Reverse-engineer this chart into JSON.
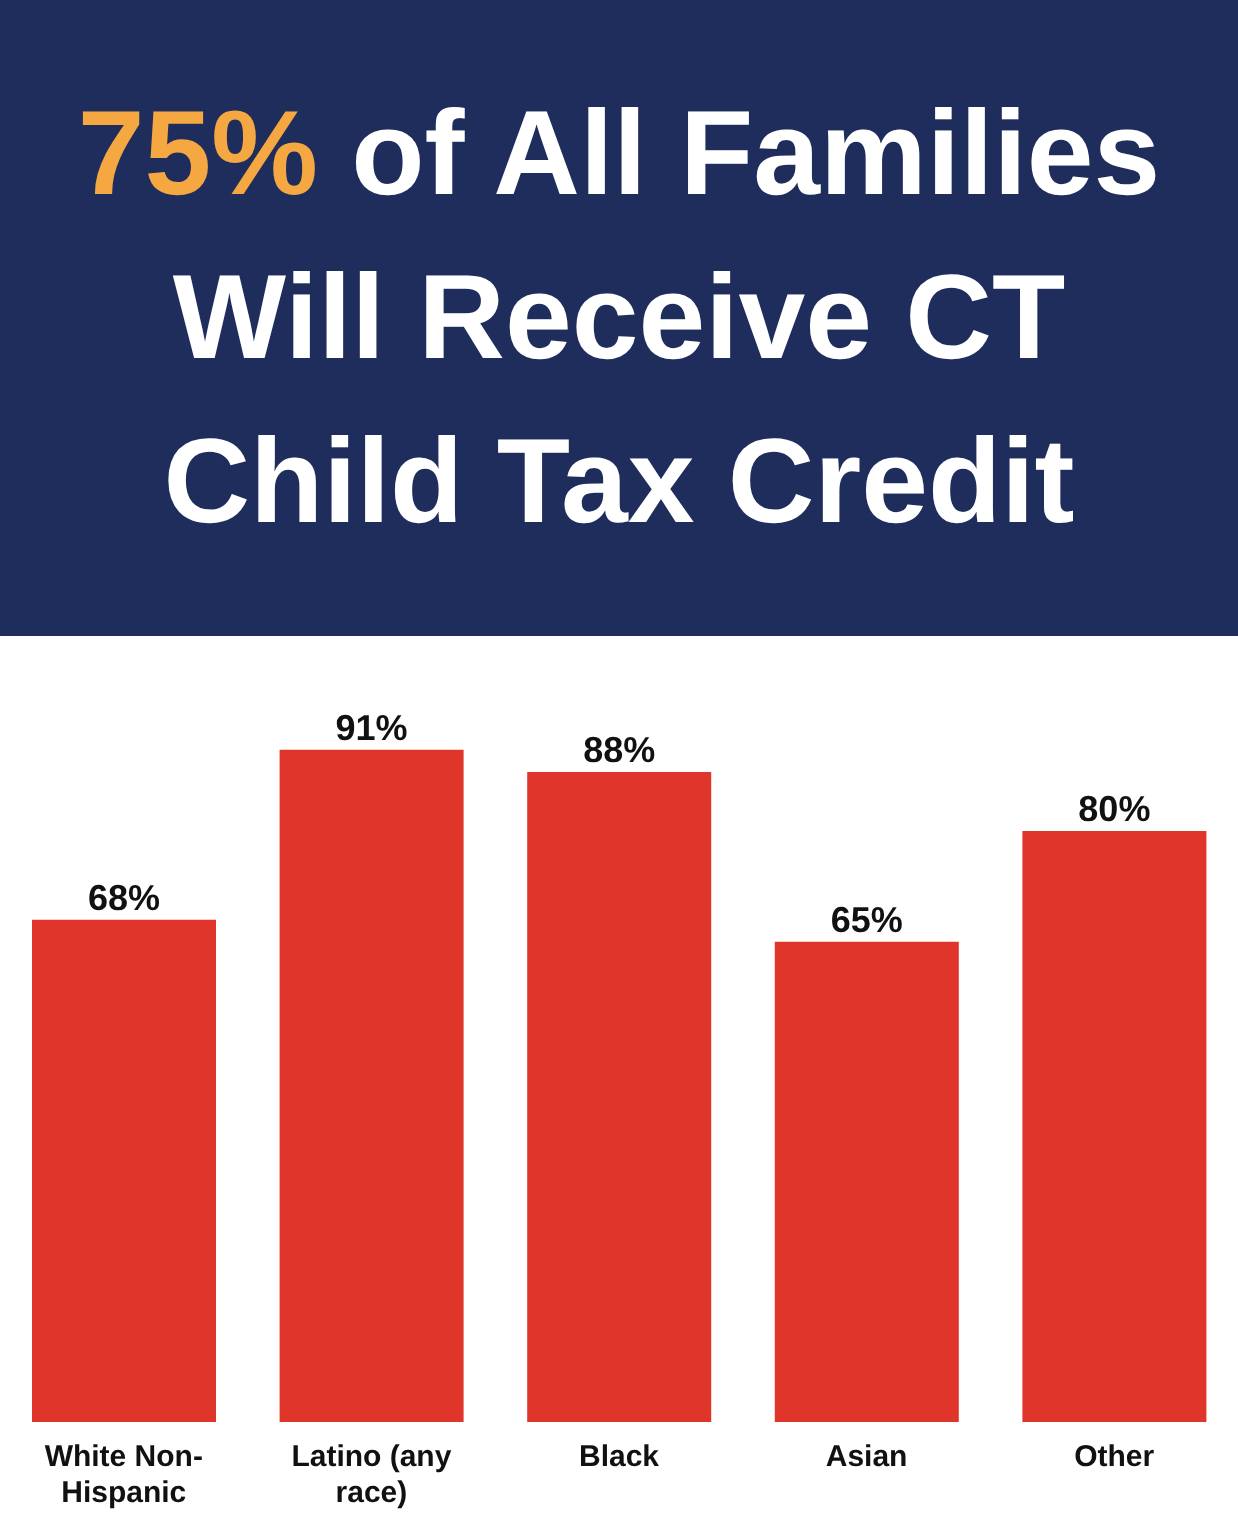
{
  "chart_data": {
    "type": "bar",
    "title": "75% of All Families Will Receive CT Child Tax Credit",
    "categories": [
      "White Non-Hispanic",
      "Latino (any race)",
      "Black",
      "Asian",
      "Other"
    ],
    "values": [
      68,
      91,
      88,
      65,
      80
    ],
    "color": "#e0352b",
    "data_labels": true,
    "value_labels": [
      "68%",
      "91%",
      "88%",
      "65%",
      "80%"
    ]
  }
}
